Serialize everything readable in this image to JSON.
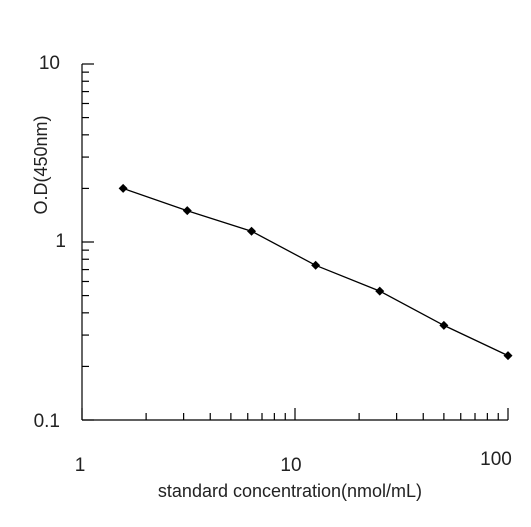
{
  "chart_data": {
    "type": "line",
    "xlabel": "standard concentration(nmol/mL)",
    "ylabel": "O.D(450nm)",
    "xscale": "log",
    "yscale": "log",
    "xlim": [
      1,
      100
    ],
    "ylim": [
      0.1,
      10
    ],
    "x_tick_labels": [
      "1",
      "10",
      "100"
    ],
    "y_tick_labels": [
      "0.1",
      "1",
      "10"
    ],
    "grid": false,
    "marker": "diamond",
    "line_color": "#000000",
    "series": [
      {
        "x": [
          1.56,
          3.12,
          6.25,
          12.5,
          25,
          50,
          100
        ],
        "y": [
          2.0,
          1.5,
          1.15,
          0.74,
          0.53,
          0.34,
          0.23
        ]
      }
    ]
  }
}
